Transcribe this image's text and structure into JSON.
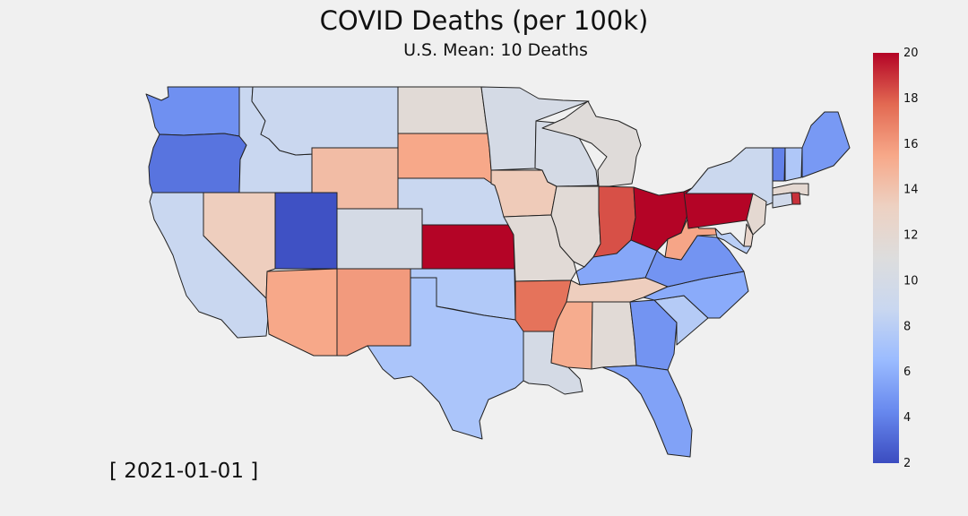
{
  "title": "COVID Deaths (per 100k)",
  "subtitle": "U.S. Mean: 10 Deaths",
  "date_label": "[ 2021-01-01 ]",
  "colorbar": {
    "min": 2,
    "max": 20,
    "ticks": [
      2,
      4,
      6,
      8,
      10,
      12,
      14,
      16,
      18,
      20
    ],
    "colormap": [
      "#3b4cc0",
      "#6788ee",
      "#9abbff",
      "#c9d7f0",
      "#dddddd",
      "#edd1c2",
      "#f7a889",
      "#e26952",
      "#b40426"
    ]
  },
  "states": [
    {
      "abbr": "WA",
      "value": 4.6
    },
    {
      "abbr": "OR",
      "value": 3.5
    },
    {
      "abbr": "CA",
      "value": 8.8
    },
    {
      "abbr": "ID",
      "value": 8.8
    },
    {
      "abbr": "NV",
      "value": 13.4
    },
    {
      "abbr": "MT",
      "value": 8.9
    },
    {
      "abbr": "WY",
      "value": 14.4
    },
    {
      "abbr": "UT",
      "value": 2.2
    },
    {
      "abbr": "AZ",
      "value": 15.5
    },
    {
      "abbr": "CO",
      "value": 10.0
    },
    {
      "abbr": "NM",
      "value": 16.0
    },
    {
      "abbr": "ND",
      "value": 11.6
    },
    {
      "abbr": "SD",
      "value": 15.5
    },
    {
      "abbr": "NE",
      "value": 8.8
    },
    {
      "abbr": "KS",
      "value": 20.0
    },
    {
      "abbr": "OK",
      "value": 7.6
    },
    {
      "abbr": "TX",
      "value": 7.3
    },
    {
      "abbr": "MN",
      "value": 10.0
    },
    {
      "abbr": "IA",
      "value": 13.6
    },
    {
      "abbr": "MO",
      "value": 11.6
    },
    {
      "abbr": "AR",
      "value": 17.4
    },
    {
      "abbr": "LA",
      "value": 10.0
    },
    {
      "abbr": "WI",
      "value": 10.0
    },
    {
      "abbr": "IL",
      "value": 11.6
    },
    {
      "abbr": "MI",
      "value": 11.3
    },
    {
      "abbr": "IN",
      "value": 18.3
    },
    {
      "abbr": "OH",
      "value": 20.0
    },
    {
      "abbr": "KY",
      "value": 5.6
    },
    {
      "abbr": "TN",
      "value": 13.4
    },
    {
      "abbr": "MS",
      "value": 15.3
    },
    {
      "abbr": "AL",
      "value": 11.6
    },
    {
      "abbr": "GA",
      "value": 4.8
    },
    {
      "abbr": "FL",
      "value": 5.4
    },
    {
      "abbr": "SC",
      "value": 7.8
    },
    {
      "abbr": "NC",
      "value": 5.8
    },
    {
      "abbr": "VA",
      "value": 4.8
    },
    {
      "abbr": "WV",
      "value": 15.6
    },
    {
      "abbr": "PA",
      "value": 20.0
    },
    {
      "abbr": "NY",
      "value": 9.0
    },
    {
      "abbr": "VT",
      "value": 4.0
    },
    {
      "abbr": "NH",
      "value": 7.5
    },
    {
      "abbr": "ME",
      "value": 5.0
    },
    {
      "abbr": "MA",
      "value": 12.0
    },
    {
      "abbr": "RI",
      "value": 19.0
    },
    {
      "abbr": "CT",
      "value": 9.5
    },
    {
      "abbr": "NJ",
      "value": 12.0
    },
    {
      "abbr": "DE",
      "value": 12.5
    },
    {
      "abbr": "MD",
      "value": 8.0
    }
  ]
}
